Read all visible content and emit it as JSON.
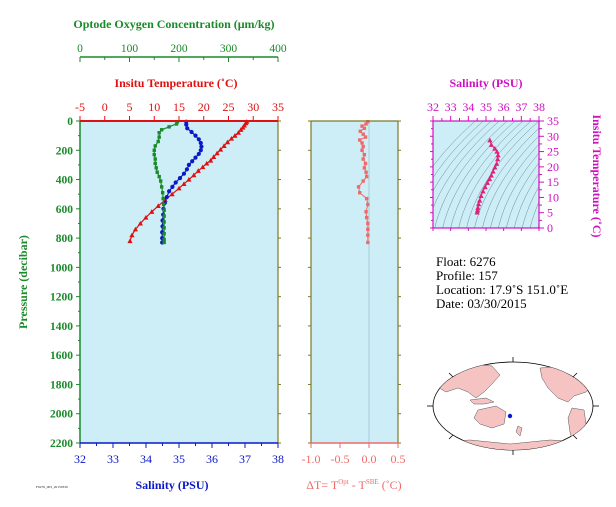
{
  "colors": {
    "oxygen": "#1a8a2a",
    "temperature": "#e01010",
    "salinity": "#0a18c8",
    "dt": "#f06a6a",
    "ts": "#d010c0",
    "ts_points": "#e0207a",
    "panel_bg": "#cdeef7",
    "axis_dark": "#7a7a2a",
    "land": "#f6c3c3"
  },
  "labels": {
    "oxygen_axis": "Optode Oxygen Concentration (μm/kg)",
    "temperature_axis": "Insitu Temperature (˚C)",
    "pressure_axis": "Pressure (decibar)",
    "salinity_axis": "Salinity (PSU)",
    "dt_axis_prefix": "ΔT= T",
    "dt_sup1": "Opt",
    "dt_mid": " - T",
    "dt_sup2": "SBE",
    "dt_suffix": " (˚C)",
    "ts_top": "Salinity (PSU)",
    "ts_right": "Insitu Temperature (˚C)",
    "footer_code": "F6276_003_20150330"
  },
  "info": {
    "float": "Float:  6276",
    "profile": "Profile:  157",
    "location": "Location:  17.9˚S  151.0˚E",
    "date": "Date:  03/30/2015"
  },
  "chart_data": [
    {
      "type": "line",
      "panel": "profile",
      "y_label": "Pressure (decibar)",
      "ylim": [
        2200,
        0
      ],
      "y_ticks": [
        0,
        200,
        400,
        600,
        800,
        1000,
        1200,
        1400,
        1600,
        1800,
        2000,
        2200
      ],
      "axes": {
        "oxygen": {
          "label": "Optode Oxygen Concentration (μm/kg)",
          "lim": [
            0,
            400
          ],
          "ticks": [
            0,
            100,
            200,
            300,
            400
          ]
        },
        "temperature": {
          "label": "Insitu Temperature (˚C)",
          "lim": [
            -5,
            35
          ],
          "ticks": [
            -5,
            0,
            5,
            10,
            15,
            20,
            25,
            30,
            35
          ]
        },
        "salinity": {
          "label": "Salinity (PSU)",
          "lim": [
            32,
            38
          ],
          "ticks": [
            32,
            33,
            34,
            35,
            36,
            37,
            38
          ]
        }
      },
      "series": [
        {
          "axis": "temperature",
          "marker": "triangle",
          "points": [
            [
              28.7,
              5
            ],
            [
              28.5,
              15
            ],
            [
              28.2,
              30
            ],
            [
              27.9,
              45
            ],
            [
              27.5,
              60
            ],
            [
              27.0,
              80
            ],
            [
              26.3,
              100
            ],
            [
              25.6,
              120
            ],
            [
              24.8,
              145
            ],
            [
              24.1,
              170
            ],
            [
              23.4,
              195
            ],
            [
              22.7,
              220
            ],
            [
              22.0,
              245
            ],
            [
              21.4,
              270
            ],
            [
              20.6,
              290
            ],
            [
              19.8,
              315
            ],
            [
              18.9,
              340
            ],
            [
              18.0,
              370
            ],
            [
              17.0,
              400
            ],
            [
              16.0,
              430
            ],
            [
              15.0,
              460
            ],
            [
              13.6,
              500
            ],
            [
              12.2,
              540
            ],
            [
              10.8,
              580
            ],
            [
              9.5,
              620
            ],
            [
              8.3,
              660
            ],
            [
              7.2,
              700
            ],
            [
              6.2,
              740
            ],
            [
              5.5,
              780
            ],
            [
              5.1,
              820
            ]
          ]
        },
        {
          "axis": "salinity",
          "marker": "circle",
          "points": [
            [
              35.22,
              5
            ],
            [
              35.22,
              25
            ],
            [
              35.25,
              50
            ],
            [
              35.38,
              75
            ],
            [
              35.5,
              100
            ],
            [
              35.6,
              125
            ],
            [
              35.66,
              150
            ],
            [
              35.68,
              175
            ],
            [
              35.66,
              200
            ],
            [
              35.6,
              225
            ],
            [
              35.5,
              250
            ],
            [
              35.4,
              275
            ],
            [
              35.3,
              300
            ],
            [
              35.24,
              330
            ],
            [
              35.15,
              360
            ],
            [
              35.03,
              390
            ],
            [
              34.9,
              420
            ],
            [
              34.8,
              450
            ],
            [
              34.7,
              480
            ],
            [
              34.63,
              520
            ],
            [
              34.57,
              560
            ],
            [
              34.53,
              600
            ],
            [
              34.52,
              640
            ],
            [
              34.5,
              680
            ],
            [
              34.5,
              720
            ],
            [
              34.49,
              760
            ],
            [
              34.49,
              800
            ],
            [
              34.49,
              830
            ]
          ]
        },
        {
          "axis": "oxygen",
          "marker": "square",
          "points": [
            [
              197,
              5
            ],
            [
              195,
              20
            ],
            [
              180,
              40
            ],
            [
              165,
              60
            ],
            [
              160,
              80
            ],
            [
              160,
              110
            ],
            [
              158,
              140
            ],
            [
              152,
              170
            ],
            [
              150,
              200
            ],
            [
              150,
              230
            ],
            [
              152,
              260
            ],
            [
              152,
              290
            ],
            [
              154,
              320
            ],
            [
              156,
              350
            ],
            [
              160,
              380
            ],
            [
              163,
              410
            ],
            [
              165,
              450
            ],
            [
              167,
              490
            ],
            [
              168,
              530
            ],
            [
              169,
              570
            ],
            [
              170,
              610
            ],
            [
              170,
              650
            ],
            [
              170,
              690
            ],
            [
              170,
              730
            ],
            [
              170,
              770
            ],
            [
              170,
              810
            ],
            [
              170,
              830
            ]
          ]
        }
      ]
    },
    {
      "type": "line",
      "panel": "delta_t",
      "xlabel": "ΔT= TOpt - TSBE (˚C)",
      "xlim": [
        -1.0,
        0.5
      ],
      "x_ticks": [
        -1.0,
        -0.5,
        0.0,
        0.5
      ],
      "ylim": [
        2200,
        0
      ],
      "series": [
        {
          "marker": "square",
          "points": [
            [
              -0.02,
              5
            ],
            [
              -0.05,
              20
            ],
            [
              -0.12,
              35
            ],
            [
              -0.08,
              50
            ],
            [
              -0.15,
              70
            ],
            [
              -0.1,
              90
            ],
            [
              -0.06,
              110
            ],
            [
              -0.16,
              130
            ],
            [
              -0.12,
              150
            ],
            [
              -0.1,
              175
            ],
            [
              -0.12,
              200
            ],
            [
              -0.08,
              230
            ],
            [
              -0.1,
              260
            ],
            [
              -0.06,
              290
            ],
            [
              -0.08,
              320
            ],
            [
              -0.05,
              350
            ],
            [
              -0.04,
              380
            ],
            [
              -0.1,
              410
            ],
            [
              -0.18,
              450
            ],
            [
              -0.16,
              490
            ],
            [
              -0.04,
              530
            ],
            [
              -0.02,
              570
            ],
            [
              -0.05,
              620
            ],
            [
              -0.04,
              660
            ],
            [
              -0.02,
              700
            ],
            [
              -0.02,
              740
            ],
            [
              -0.02,
              780
            ],
            [
              -0.02,
              830
            ]
          ]
        }
      ]
    },
    {
      "type": "scatter",
      "panel": "ts_diagram",
      "xlabel": "Salinity (PSU)",
      "ylabel": "Insitu Temperature (˚C)",
      "xlim": [
        32,
        38
      ],
      "ylim": [
        0,
        35
      ],
      "x_ticks": [
        32,
        33,
        34,
        35,
        36,
        37,
        38
      ],
      "y_ticks": [
        0,
        5,
        10,
        15,
        20,
        25,
        30,
        35
      ],
      "points": [
        [
          35.22,
          28.7
        ],
        [
          35.3,
          27.2
        ],
        [
          35.5,
          26.0
        ],
        [
          35.62,
          25.0
        ],
        [
          35.68,
          23.8
        ],
        [
          35.66,
          22.5
        ],
        [
          35.6,
          21.0
        ],
        [
          35.5,
          19.8
        ],
        [
          35.4,
          18.5
        ],
        [
          35.3,
          17.2
        ],
        [
          35.2,
          16.0
        ],
        [
          35.08,
          14.8
        ],
        [
          34.95,
          13.4
        ],
        [
          34.83,
          12.0
        ],
        [
          34.72,
          10.5
        ],
        [
          34.64,
          9.0
        ],
        [
          34.58,
          7.8
        ],
        [
          34.54,
          6.6
        ],
        [
          34.52,
          5.8
        ],
        [
          34.5,
          5.1
        ]
      ]
    }
  ]
}
